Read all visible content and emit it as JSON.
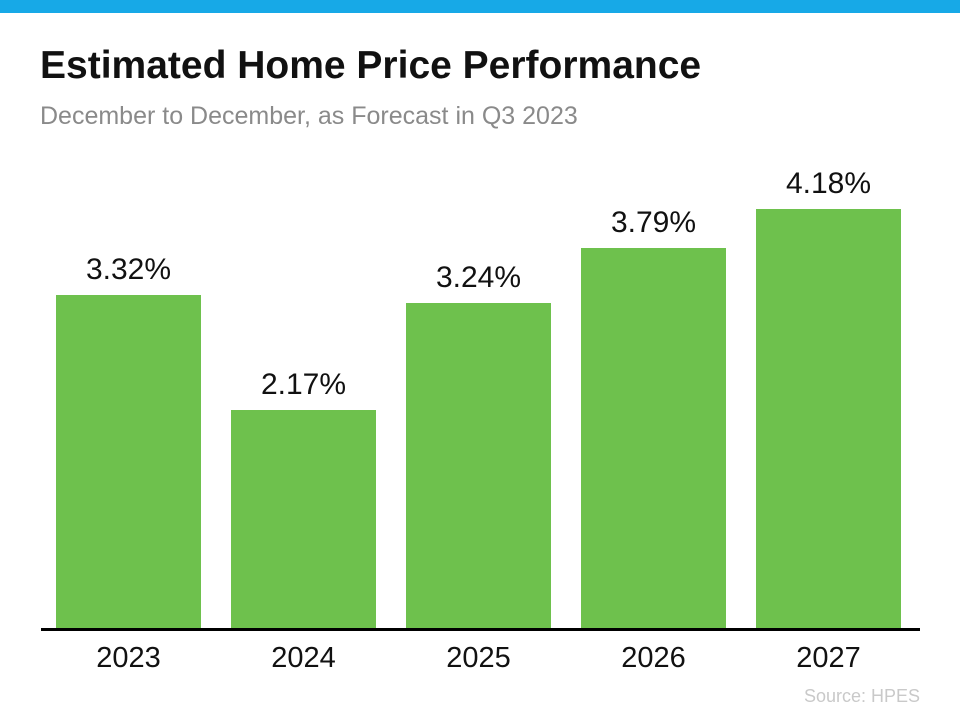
{
  "page": {
    "accent_bar_color": "#17a9e7",
    "background_color": "#ffffff"
  },
  "header": {
    "title": "Estimated Home Price Performance",
    "subtitle": "December to December, as Forecast in Q3 2023"
  },
  "chart_data": {
    "type": "bar",
    "title": "Estimated Home Price Performance",
    "subtitle": "December to December, as Forecast in Q3 2023",
    "categories": [
      "2023",
      "2024",
      "2025",
      "2026",
      "2027"
    ],
    "values": [
      3.32,
      2.17,
      3.24,
      3.79,
      4.18
    ],
    "value_labels": [
      "3.32%",
      "2.17%",
      "3.24%",
      "3.79%",
      "4.18%"
    ],
    "xlabel": "",
    "ylabel": "",
    "ylim": [
      0,
      4.5
    ],
    "grid": false,
    "legend": false,
    "bar_color": "#6ec14d",
    "axis_color": "#000000",
    "label_color": "#111111"
  },
  "footer": {
    "source": "Source: HPES"
  }
}
